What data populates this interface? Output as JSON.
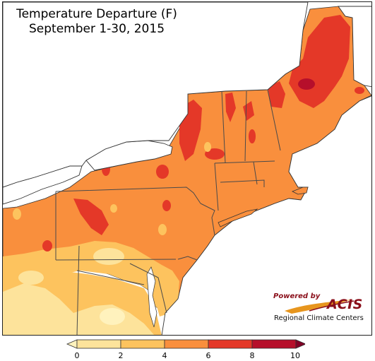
{
  "title": {
    "line1": "Temperature Departure (F)",
    "line2": "September 1-30, 2015"
  },
  "legend": {
    "ticks": [
      "0",
      "2",
      "4",
      "6",
      "8",
      "10"
    ],
    "bins": [
      {
        "range": "<0",
        "color": "#fff2bd"
      },
      {
        "range": "0-2",
        "color": "#fde39b"
      },
      {
        "range": "2-4",
        "color": "#fdc35e"
      },
      {
        "range": "4-6",
        "color": "#f98f3d"
      },
      {
        "range": "6-8",
        "color": "#e43828"
      },
      {
        "range": "8-10",
        "color": "#b60f2b"
      },
      {
        "range": ">10",
        "color": "#800026"
      }
    ]
  },
  "logo": {
    "powered_by": "Powered by",
    "brand": "ACIS",
    "org": "Regional Climate Centers"
  },
  "colors": {
    "water": "#ffffff",
    "state_border": "#4a4a4a",
    "county_border": "#b0653a",
    "accent": "#8a0f1a"
  }
}
